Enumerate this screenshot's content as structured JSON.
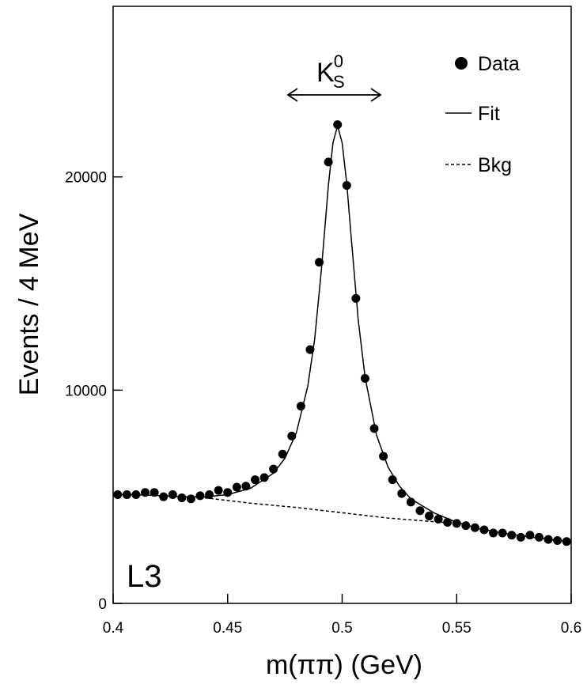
{
  "chart_data": {
    "type": "scatter",
    "x_label": "m(ππ)  (GeV)",
    "y_label": "Events / 4 MeV",
    "xlim": [
      0.4,
      0.6
    ],
    "xticks": [
      0.4,
      0.45,
      0.5,
      0.55,
      0.6
    ],
    "ylim": [
      0,
      28000
    ],
    "yticks": [
      0,
      10000,
      20000
    ],
    "annotations": [
      {
        "text": "K",
        "sub": "S",
        "sup": "0"
      },
      {
        "text": "L3"
      }
    ],
    "series": [
      {
        "name": "Data",
        "style": "markers",
        "color": "#000000",
        "x": [
          0.402,
          0.406,
          0.41,
          0.414,
          0.418,
          0.422,
          0.426,
          0.43,
          0.434,
          0.438,
          0.442,
          0.446,
          0.45,
          0.454,
          0.458,
          0.462,
          0.466,
          0.47,
          0.474,
          0.478,
          0.482,
          0.486,
          0.49,
          0.494,
          0.498,
          0.502,
          0.506,
          0.51,
          0.514,
          0.518,
          0.522,
          0.526,
          0.53,
          0.534,
          0.538,
          0.542,
          0.546,
          0.55,
          0.554,
          0.558,
          0.562,
          0.566,
          0.57,
          0.574,
          0.578,
          0.582,
          0.586,
          0.59,
          0.594,
          0.598
        ],
        "values": [
          5100,
          5100,
          5100,
          5200,
          5200,
          5000,
          5100,
          4950,
          4900,
          5050,
          5100,
          5300,
          5200,
          5450,
          5500,
          5800,
          5900,
          6300,
          7000,
          7850,
          9250,
          11900,
          16000,
          20700,
          22450,
          19600,
          14300,
          10550,
          8200,
          6900,
          5800,
          5150,
          4750,
          4350,
          4100,
          3950,
          3800,
          3750,
          3650,
          3550,
          3450,
          3300,
          3300,
          3200,
          3100,
          3200,
          3100,
          3000,
          2950,
          2900
        ]
      },
      {
        "name": "Fit",
        "style": "solid",
        "color": "#000000",
        "x": [
          0.4,
          0.41,
          0.42,
          0.43,
          0.44,
          0.45,
          0.46,
          0.47,
          0.475,
          0.48,
          0.485,
          0.488,
          0.491,
          0.494,
          0.496,
          0.498,
          0.5,
          0.502,
          0.504,
          0.507,
          0.51,
          0.515,
          0.52,
          0.525,
          0.53,
          0.54,
          0.55,
          0.56,
          0.57,
          0.58,
          0.59,
          0.6
        ],
        "values": [
          5100,
          5100,
          5050,
          5000,
          5000,
          5100,
          5400,
          6100,
          6800,
          8000,
          10200,
          12400,
          15700,
          19600,
          21600,
          22400,
          21600,
          19700,
          17100,
          13300,
          10600,
          7900,
          6400,
          5500,
          4900,
          4250,
          3800,
          3500,
          3300,
          3150,
          3000,
          2900
        ]
      },
      {
        "name": "Bkg",
        "style": "dashed",
        "color": "#000000",
        "x": [
          0.44,
          0.46,
          0.48,
          0.5,
          0.52,
          0.55
        ],
        "values": [
          4950,
          4700,
          4500,
          4250,
          4000,
          3750
        ]
      }
    ]
  }
}
